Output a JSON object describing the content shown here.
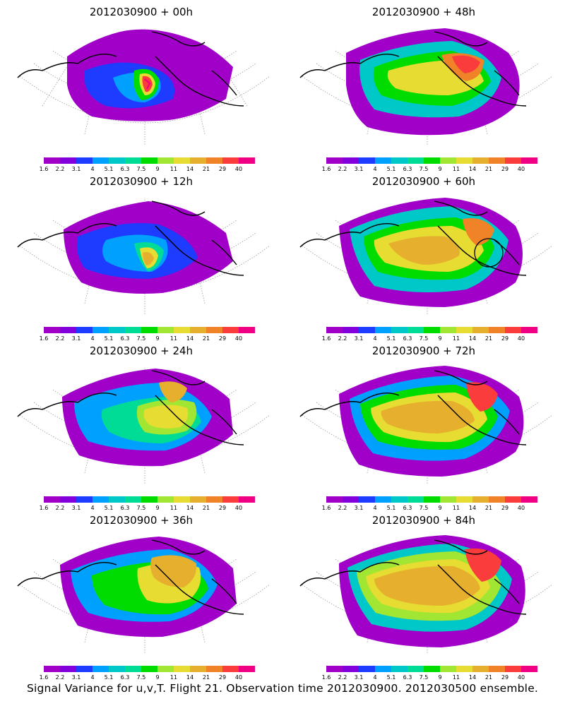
{
  "figure": {
    "caption": "Signal Variance for u,v,T. Flight 21. Observation time 2012030900. 2012030500 ensemble."
  },
  "colorbar": {
    "labels": [
      "1.6",
      "2.2",
      "3.1",
      "4",
      "5.1",
      "6.3",
      "7.5",
      "9",
      "11",
      "14",
      "21",
      "29",
      "40"
    ],
    "colors": [
      "#a000c8",
      "#8200dc",
      "#1e3cff",
      "#00a0ff",
      "#00c8c8",
      "#00dc96",
      "#00dc00",
      "#a0e632",
      "#e6dc32",
      "#e6af2d",
      "#f08228",
      "#fa3c3c",
      "#f00082"
    ]
  },
  "panels": [
    {
      "title": "2012030900 + 00h"
    },
    {
      "title": "2012030900 + 48h"
    },
    {
      "title": "2012030900 + 12h"
    },
    {
      "title": "2012030900 + 60h"
    },
    {
      "title": "2012030900 + 24h"
    },
    {
      "title": "2012030900 + 72h"
    },
    {
      "title": "2012030900 + 36h"
    },
    {
      "title": "2012030900 + 84h"
    }
  ]
}
